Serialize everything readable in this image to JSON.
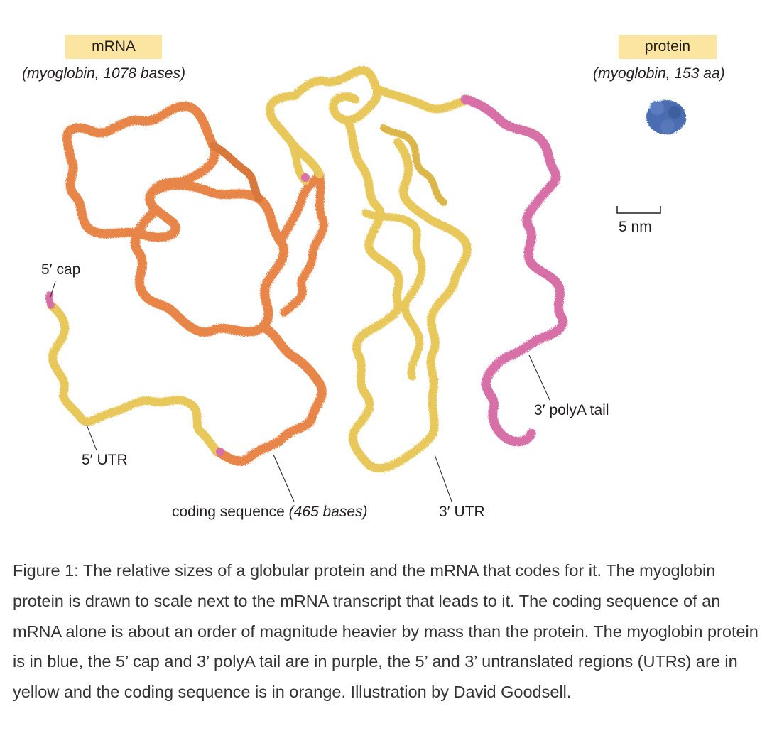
{
  "mrna": {
    "title": "mRNA",
    "subtitle": "(myoglobin, 1078 bases)"
  },
  "protein": {
    "title": "protein",
    "subtitle": "(myoglobin, 153 aa)"
  },
  "scale_bar": {
    "label": "5 nm"
  },
  "annotations": {
    "cap5": "5′ cap",
    "utr5": "5′ UTR",
    "coding": "coding sequence ",
    "coding_italic": "(465 bases)",
    "utr3": "3′ UTR",
    "polya": "3′ polyA tail"
  },
  "colors": {
    "coding": "#e8864a",
    "utr": "#e8c85a",
    "caps": "#d870a8",
    "protein": "#4a6db0",
    "label_box": "#fbe5a0"
  },
  "caption": "Figure 1: The relative sizes of a globular protein and the mRNA that codes for it. The myoglobin protein is drawn to scale next to the mRNA transcript that leads to it. The coding sequence of an mRNA alone is about an order of magnitude heavier by mass than the protein. The myoglobin protein is in blue, the 5’ cap and 3’ polyA tail are in purple, the 5’ and 3’ untranslated regions (UTRs) are in yellow and the coding sequence is in orange. Illustration by David Goodsell."
}
